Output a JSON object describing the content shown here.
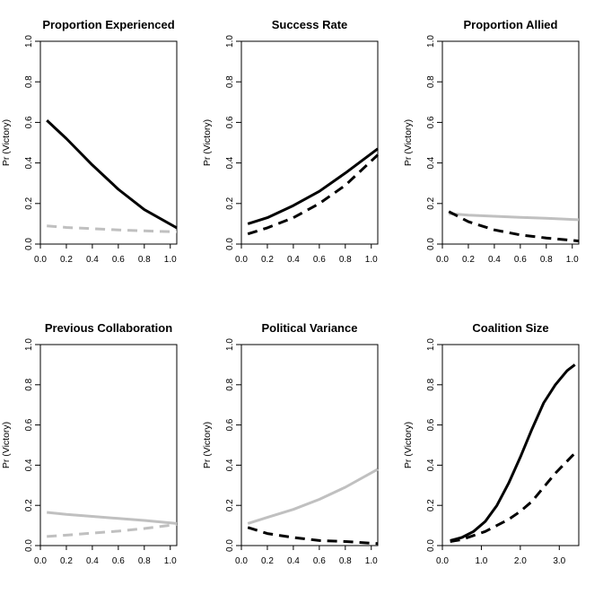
{
  "chart_data": [
    {
      "type": "line",
      "title": "Proportion Experienced",
      "xlabel": "",
      "ylabel": "Pr (Victory)",
      "xlim": [
        0,
        1.05
      ],
      "ylim": [
        0,
        1
      ],
      "xticks": [
        "0.0",
        "0.2",
        "0.4",
        "0.6",
        "0.8",
        "1.0"
      ],
      "yticks": [
        "0.0",
        "0.2",
        "0.4",
        "0.6",
        "0.8",
        "1.0"
      ],
      "series": [
        {
          "style": "solid",
          "color": "#000000",
          "x": [
            0.05,
            0.2,
            0.4,
            0.6,
            0.8,
            1.05
          ],
          "y": [
            0.61,
            0.52,
            0.39,
            0.27,
            0.17,
            0.08
          ]
        },
        {
          "style": "dashed",
          "color": "#c0c0c0",
          "x": [
            0.05,
            0.2,
            0.4,
            0.6,
            0.8,
            1.05
          ],
          "y": [
            0.09,
            0.082,
            0.076,
            0.07,
            0.065,
            0.06
          ]
        }
      ]
    },
    {
      "type": "line",
      "title": "Success Rate",
      "xlabel": "",
      "ylabel": "Pr (Victory)",
      "xlim": [
        0,
        1.05
      ],
      "ylim": [
        0,
        1
      ],
      "xticks": [
        "0.0",
        "0.2",
        "0.4",
        "0.6",
        "0.8",
        "1.0"
      ],
      "yticks": [
        "0.0",
        "0.2",
        "0.4",
        "0.6",
        "0.8",
        "1.0"
      ],
      "series": [
        {
          "style": "solid",
          "color": "#000000",
          "x": [
            0.05,
            0.2,
            0.4,
            0.6,
            0.8,
            1.05
          ],
          "y": [
            0.1,
            0.13,
            0.19,
            0.26,
            0.35,
            0.47
          ]
        },
        {
          "style": "dashed",
          "color": "#000000",
          "x": [
            0.05,
            0.2,
            0.4,
            0.6,
            0.8,
            1.05
          ],
          "y": [
            0.05,
            0.08,
            0.13,
            0.2,
            0.29,
            0.44
          ]
        }
      ]
    },
    {
      "type": "line",
      "title": "Proportion Allied",
      "xlabel": "",
      "ylabel": "Pr (Victory)",
      "xlim": [
        0,
        1.05
      ],
      "ylim": [
        0,
        1
      ],
      "xticks": [
        "0.0",
        "0.2",
        "0.4",
        "0.6",
        "0.8",
        "1.0"
      ],
      "yticks": [
        "0.0",
        "0.2",
        "0.4",
        "0.6",
        "0.8",
        "1.0"
      ],
      "series": [
        {
          "style": "solid",
          "color": "#c0c0c0",
          "x": [
            0.05,
            0.2,
            0.4,
            0.6,
            0.8,
            1.05
          ],
          "y": [
            0.15,
            0.143,
            0.137,
            0.132,
            0.127,
            0.12
          ]
        },
        {
          "style": "dashed",
          "color": "#000000",
          "x": [
            0.05,
            0.2,
            0.4,
            0.6,
            0.8,
            1.05
          ],
          "y": [
            0.16,
            0.11,
            0.07,
            0.045,
            0.03,
            0.015
          ]
        }
      ]
    },
    {
      "type": "line",
      "title": "Previous Collaboration",
      "xlabel": "",
      "ylabel": "Pr (Victory)",
      "xlim": [
        0,
        1.05
      ],
      "ylim": [
        0,
        1
      ],
      "xticks": [
        "0.0",
        "0.2",
        "0.4",
        "0.6",
        "0.8",
        "1.0"
      ],
      "yticks": [
        "0.0",
        "0.2",
        "0.4",
        "0.6",
        "0.8",
        "1.0"
      ],
      "series": [
        {
          "style": "solid",
          "color": "#c0c0c0",
          "x": [
            0.05,
            0.2,
            0.4,
            0.6,
            0.8,
            1.05
          ],
          "y": [
            0.165,
            0.155,
            0.145,
            0.135,
            0.125,
            0.11
          ]
        },
        {
          "style": "dashed",
          "color": "#c0c0c0",
          "x": [
            0.05,
            0.2,
            0.4,
            0.6,
            0.8,
            1.05
          ],
          "y": [
            0.045,
            0.052,
            0.062,
            0.072,
            0.085,
            0.105
          ]
        }
      ]
    },
    {
      "type": "line",
      "title": "Political Variance",
      "xlabel": "",
      "ylabel": "Pr (Victory)",
      "xlim": [
        0,
        1.05
      ],
      "ylim": [
        0,
        1
      ],
      "xticks": [
        "0.0",
        "0.2",
        "0.4",
        "0.6",
        "0.8",
        "1.0"
      ],
      "yticks": [
        "0.0",
        "0.2",
        "0.4",
        "0.6",
        "0.8",
        "1.0"
      ],
      "series": [
        {
          "style": "solid",
          "color": "#c0c0c0",
          "x": [
            0.05,
            0.2,
            0.4,
            0.6,
            0.8,
            1.05
          ],
          "y": [
            0.11,
            0.14,
            0.18,
            0.23,
            0.29,
            0.38
          ]
        },
        {
          "style": "dashed",
          "color": "#000000",
          "x": [
            0.05,
            0.2,
            0.4,
            0.6,
            0.8,
            1.05
          ],
          "y": [
            0.09,
            0.06,
            0.04,
            0.025,
            0.02,
            0.01
          ]
        }
      ]
    },
    {
      "type": "line",
      "title": "Coalition Size",
      "xlabel": "",
      "ylabel": "Pr (Victory)",
      "xlim": [
        0,
        3.5
      ],
      "ylim": [
        0,
        1
      ],
      "xticks": [
        "0.0",
        "1.0",
        "2.0",
        "3.0"
      ],
      "yticks": [
        "0.0",
        "0.2",
        "0.4",
        "0.6",
        "0.8",
        "1.0"
      ],
      "series": [
        {
          "style": "solid",
          "color": "#000000",
          "x": [
            0.2,
            0.5,
            0.8,
            1.1,
            1.4,
            1.7,
            2.0,
            2.3,
            2.6,
            2.9,
            3.2,
            3.4
          ],
          "y": [
            0.025,
            0.04,
            0.07,
            0.12,
            0.2,
            0.31,
            0.44,
            0.58,
            0.71,
            0.8,
            0.87,
            0.9
          ]
        },
        {
          "style": "dashed",
          "color": "#000000",
          "x": [
            0.2,
            0.5,
            0.8,
            1.1,
            1.4,
            1.7,
            2.0,
            2.3,
            2.6,
            2.9,
            3.2,
            3.4
          ],
          "y": [
            0.02,
            0.03,
            0.05,
            0.07,
            0.1,
            0.13,
            0.17,
            0.22,
            0.29,
            0.36,
            0.42,
            0.46
          ]
        }
      ]
    }
  ]
}
